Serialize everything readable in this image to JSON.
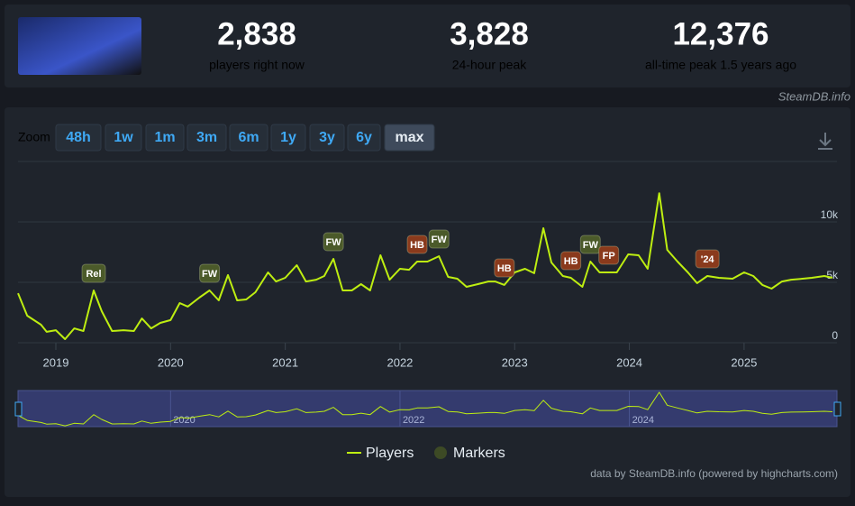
{
  "stats": [
    {
      "value": "2,838",
      "label": "players right now"
    },
    {
      "value": "3,828",
      "label": "24-hour peak"
    },
    {
      "value": "12,376",
      "label": "all-time peak 1.5 years ago"
    }
  ],
  "brand": "SteamDB.info",
  "zoom": {
    "label": "Zoom",
    "buttons": [
      "48h",
      "1w",
      "1m",
      "3m",
      "6m",
      "1y",
      "3y",
      "6y",
      "max"
    ],
    "active": 8
  },
  "chart_data": {
    "type": "line",
    "x": [
      2018.67,
      2018.75,
      2018.87,
      2018.92,
      2019.0,
      2019.08,
      2019.16,
      2019.24,
      2019.33,
      2019.4,
      2019.49,
      2019.59,
      2019.68,
      2019.75,
      2019.83,
      2019.91,
      2020.0,
      2020.08,
      2020.15,
      2020.25,
      2020.34,
      2020.42,
      2020.5,
      2020.58,
      2020.66,
      2020.74,
      2020.85,
      2020.92,
      2021.0,
      2021.1,
      2021.18,
      2021.27,
      2021.34,
      2021.42,
      2021.5,
      2021.58,
      2021.66,
      2021.74,
      2021.83,
      2021.91,
      2022.0,
      2022.08,
      2022.15,
      2022.24,
      2022.34,
      2022.42,
      2022.5,
      2022.58,
      2022.68,
      2022.77,
      2022.83,
      2022.91,
      2023.0,
      2023.09,
      2023.17,
      2023.25,
      2023.32,
      2023.42,
      2023.49,
      2023.59,
      2023.66,
      2023.74,
      2023.82,
      2023.89,
      2023.99,
      2024.08,
      2024.16,
      2024.26,
      2024.33,
      2024.42,
      2024.51,
      2024.59,
      2024.68,
      2024.78,
      2024.9,
      2025.0,
      2025.08,
      2025.16,
      2025.24,
      2025.33,
      2025.41,
      2025.51,
      2025.59,
      2025.7,
      2025.77
    ],
    "series": [
      {
        "name": "Players",
        "color": "#beee11",
        "values": [
          4100,
          2240,
          1490,
          900,
          1040,
          300,
          1190,
          970,
          4330,
          2610,
          970,
          1040,
          970,
          2010,
          1190,
          1640,
          1870,
          3280,
          2990,
          3730,
          4330,
          3510,
          5600,
          3510,
          3580,
          4180,
          5820,
          5070,
          5370,
          6420,
          5070,
          5220,
          5520,
          6940,
          4330,
          4330,
          4850,
          4330,
          7240,
          5220,
          6120,
          6040,
          6720,
          6720,
          7160,
          5450,
          5300,
          4630,
          4850,
          5070,
          5070,
          4780,
          5820,
          6120,
          5750,
          9480,
          6640,
          5520,
          5370,
          4630,
          6720,
          5820,
          5820,
          5820,
          7310,
          7240,
          6120,
          12376,
          7690,
          6720,
          5820,
          4930,
          5520,
          5370,
          5300,
          5820,
          5520,
          4780,
          4480,
          5070,
          5220,
          5300,
          5370,
          5520,
          5370
        ]
      }
    ],
    "xlim": [
      2018.67,
      2025.81
    ],
    "xticks": [
      2019,
      2020,
      2021,
      2022,
      2023,
      2024,
      2025
    ],
    "ylim": [
      0,
      15000
    ],
    "yticks": [
      0,
      {
        "value": 5000,
        "label": "5k"
      },
      {
        "value": 10000,
        "label": "10k"
      }
    ],
    "grid": true,
    "markers": {
      "name": "Markers",
      "color": "#3d4a25",
      "items": [
        {
          "x": 2019.33,
          "label": "Rel",
          "color": "#4b5a2a"
        },
        {
          "x": 2020.34,
          "label": "FW",
          "color": "#4b5a2a"
        },
        {
          "x": 2021.42,
          "label": "FW",
          "color": "#4b5a2a"
        },
        {
          "x": 2022.15,
          "label": "HB",
          "color": "#8a3a1c"
        },
        {
          "x": 2022.34,
          "label": "FW",
          "color": "#4b5a2a"
        },
        {
          "x": 2022.91,
          "label": "HB",
          "color": "#8a3a1c"
        },
        {
          "x": 2023.49,
          "label": "HB",
          "color": "#8a3a1c"
        },
        {
          "x": 2023.66,
          "label": "FW",
          "color": "#4b5a2a"
        },
        {
          "x": 2023.82,
          "label": "FP",
          "color": "#8a3a1c"
        },
        {
          "x": 2024.68,
          "label": "'24",
          "color": "#8a3a1c"
        }
      ]
    },
    "navigator": {
      "ylim": [
        0,
        13000
      ],
      "xticks": [
        2020,
        2022,
        2024
      ]
    }
  },
  "credits": "data by SteamDB.info (powered by highcharts.com)"
}
